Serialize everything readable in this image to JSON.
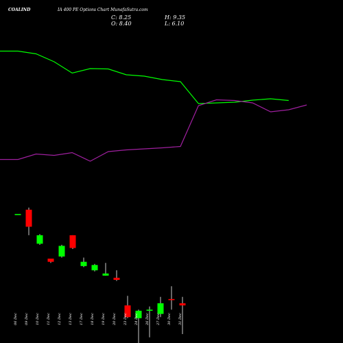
{
  "header": {
    "ticker": "COALIND",
    "subtitle": "IA 400 PE Options Chart MunafaSutra.com",
    "close_text": "C: 8.25",
    "open_text": "O: 8.40",
    "high_text": "H: 9.35",
    "low_text": "L: 6.10"
  },
  "chart_data": {
    "type": "candlestick",
    "title": "COALIND IA 400 PE Options Chart MunafaSutra.com",
    "categories": [
      "06 Dec",
      "09 Dec",
      "10 Dec",
      "11 Dec",
      "12 Dec",
      "13 Dec",
      "17 Dec",
      "18 Dec",
      "19 Dec",
      "20 Dec",
      "23 Dec",
      "24 Dec",
      "26 Dec",
      "27 Dec",
      "30 Dec",
      "31 Dec"
    ],
    "candles": [
      {
        "open": 13.1,
        "close": 13.1,
        "high": 13.1,
        "low": 13.1
      },
      {
        "open": 13.3,
        "close": 12.5,
        "high": 13.4,
        "low": 12.1
      },
      {
        "open": 11.7,
        "close": 12.1,
        "high": 12.15,
        "low": 11.65
      },
      {
        "open": 11.0,
        "close": 10.85,
        "high": 11.0,
        "low": 10.8
      },
      {
        "open": 11.1,
        "close": 11.6,
        "high": 11.65,
        "low": 11.05
      },
      {
        "open": 12.1,
        "close": 11.5,
        "high": 12.1,
        "low": 11.45
      },
      {
        "open": 10.65,
        "close": 10.85,
        "high": 11.05,
        "low": 10.6
      },
      {
        "open": 10.45,
        "close": 10.7,
        "high": 10.75,
        "low": 10.4
      },
      {
        "open": 10.2,
        "close": 10.3,
        "high": 10.8,
        "low": 10.2
      },
      {
        "open": 10.1,
        "close": 10.0,
        "high": 10.45,
        "low": 9.95
      },
      {
        "open": 8.8,
        "close": 8.25,
        "high": 9.25,
        "low": 8.2
      },
      {
        "open": 8.2,
        "close": 8.55,
        "high": 8.6,
        "low": 6.9
      },
      {
        "open": 8.55,
        "close": 8.6,
        "high": 8.75,
        "low": 7.3
      },
      {
        "open": 8.4,
        "close": 8.9,
        "high": 9.2,
        "low": 8.25
      },
      {
        "open": 9.1,
        "close": 9.05,
        "high": 9.7,
        "low": 8.6
      },
      {
        "open": 8.9,
        "close": 8.8,
        "high": 9.2,
        "low": 7.45
      }
    ],
    "indicator_lines": [
      {
        "color": "#00ff00",
        "values": [
          74.5,
          74.5,
          78.5,
          90,
          106.5,
          100,
          100.5,
          109,
          111,
          116,
          119,
          151,
          150,
          149,
          146,
          144,
          146.5
        ]
      },
      {
        "color": "#a020a0",
        "values": [
          232.5,
          232.5,
          224.5,
          226.5,
          222.5,
          235,
          221,
          218.5,
          217,
          215.5,
          213.5,
          154,
          145.5,
          146.5,
          150,
          163,
          160,
          153
        ]
      }
    ],
    "colors": {
      "up": "#00ff00",
      "down": "#ff0000",
      "background": "#000000",
      "text": "#ffffff"
    },
    "grid": false
  }
}
